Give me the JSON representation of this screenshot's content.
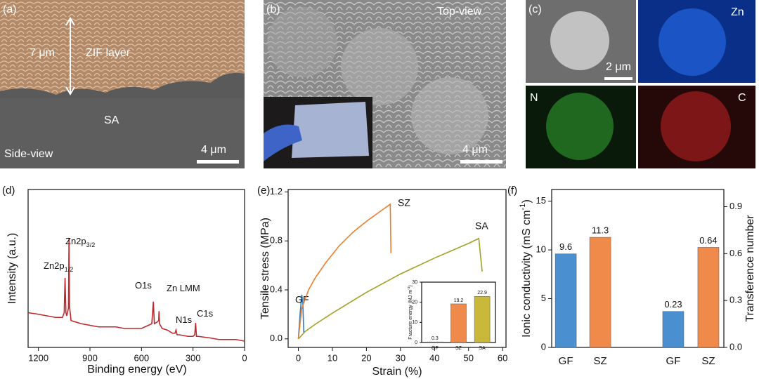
{
  "panels": [
    {
      "label": "(a)",
      "texts": [
        "7 μm",
        "ZIF layer",
        "SA",
        "Side-view",
        "4 μm"
      ]
    },
    {
      "label": "(b)",
      "texts": [
        "Top-view",
        "4 μm"
      ]
    },
    {
      "label": "(c)",
      "texts": [
        "2 μm",
        "Zn",
        "N",
        "C"
      ]
    }
  ],
  "chart_data": [
    {
      "type": "line",
      "panel": "(d)",
      "xlabel": "Binding energy (eV)",
      "ylabel": "Intensity (a.u.)",
      "color": "#c0282d",
      "xlim": [
        1260,
        0
      ],
      "xticks": [
        1200,
        900,
        600,
        300,
        0
      ],
      "ylim": [
        0,
        100
      ],
      "x": [
        1260,
        1200,
        1150,
        1100,
        1060,
        1050,
        1045,
        1040,
        1035,
        1025,
        1022,
        1019,
        1010,
        980,
        950,
        900,
        850,
        800,
        750,
        700,
        650,
        600,
        560,
        540,
        531,
        525,
        510,
        500,
        498,
        495,
        480,
        450,
        420,
        405,
        399,
        393,
        380,
        330,
        300,
        290,
        285,
        280,
        270,
        200,
        150,
        100,
        50,
        0
      ],
      "values": [
        22,
        21,
        20,
        19,
        19,
        22,
        44,
        22,
        20,
        25,
        69,
        26,
        17,
        16,
        15,
        14,
        13,
        13,
        13,
        12,
        12,
        12,
        14,
        15,
        29,
        15,
        16,
        17,
        23,
        15,
        12,
        11,
        9,
        9,
        11,
        8,
        8,
        7,
        7,
        8,
        15.5,
        7,
        7,
        6,
        5,
        5,
        5,
        4
      ],
      "annotations": [
        {
          "text": "Zn2p",
          "sub": "1/2"
        },
        {
          "text": "Zn2p",
          "sub": "3/2"
        },
        {
          "text": "O1s"
        },
        {
          "text": "Zn LMM"
        },
        {
          "text": "N1s"
        },
        {
          "text": "C1s"
        }
      ]
    },
    {
      "type": "line",
      "panel": "(e)",
      "xlabel": "Strain (%)",
      "ylabel": "Tensile stress (MPa)",
      "xlim": [
        -3,
        61
      ],
      "xticks": [
        0,
        10,
        20,
        30,
        40,
        50,
        60
      ],
      "ylim": [
        -0.07,
        1.22
      ],
      "yticks": [
        {
          "value": 0,
          "label": "0.0"
        },
        0.4,
        0.8,
        1.2
      ],
      "series": [
        {
          "name": "GF",
          "color": "#2f7fc4",
          "x": [
            0,
            0.5,
            1,
            1.3,
            1.6
          ],
          "values": [
            0,
            0.2,
            0.36,
            0.3,
            0.05
          ]
        },
        {
          "name": "SZ",
          "color": "#ee7d2c",
          "x": [
            0,
            1,
            3,
            5,
            8,
            12,
            16,
            20,
            24,
            27,
            27.2
          ],
          "values": [
            0,
            0.25,
            0.4,
            0.5,
            0.62,
            0.76,
            0.87,
            0.96,
            1.04,
            1.1,
            0.7
          ]
        },
        {
          "name": "SA",
          "color": "#a3a026",
          "x": [
            0,
            2,
            5,
            10,
            20,
            30,
            40,
            50,
            53,
            54
          ],
          "values": [
            0,
            0.06,
            0.12,
            0.21,
            0.38,
            0.53,
            0.66,
            0.78,
            0.82,
            0.55
          ]
        }
      ]
    },
    {
      "type": "bar",
      "ylabel": {
        "text": "Fracture energy (MJ m",
        "sup": "-3",
        "tail": ")"
      },
      "categories": [
        "GF",
        "SZ",
        "SA"
      ],
      "values": [
        0.3,
        19.2,
        22.9
      ],
      "colors": [
        "#4a8fd0",
        "#f08a4b",
        "#c9b83a"
      ],
      "ylim": [
        0,
        30
      ],
      "yticks": [
        0,
        10,
        20,
        30
      ]
    },
    {
      "type": "bar",
      "panel": "(f)",
      "ylabel": {
        "text": "Ionic conductivity (mS cm",
        "sup": "-1",
        "tail": ")"
      },
      "y2label": "Transference number",
      "categories": [
        "GF",
        "SZ",
        "GF",
        "SZ"
      ],
      "ylim": [
        0,
        16.2
      ],
      "yticks": [
        0,
        5,
        10,
        15
      ],
      "y2lim": [
        0,
        1.01
      ],
      "y2ticks": [
        {
          "value": 0,
          "label": "0.0"
        },
        0.3,
        0.6,
        0.9
      ],
      "series": [
        {
          "colors": [
            "#4a8fd0",
            "#f08a4b",
            null,
            null
          ],
          "values": [
            9.6,
            11.3,
            null,
            null
          ]
        },
        {
          "axis": "y2",
          "colors": [
            null,
            null,
            "#4a8fd0",
            "#f08a4b"
          ],
          "values": [
            null,
            null,
            0.23,
            0.64
          ]
        }
      ]
    }
  ]
}
